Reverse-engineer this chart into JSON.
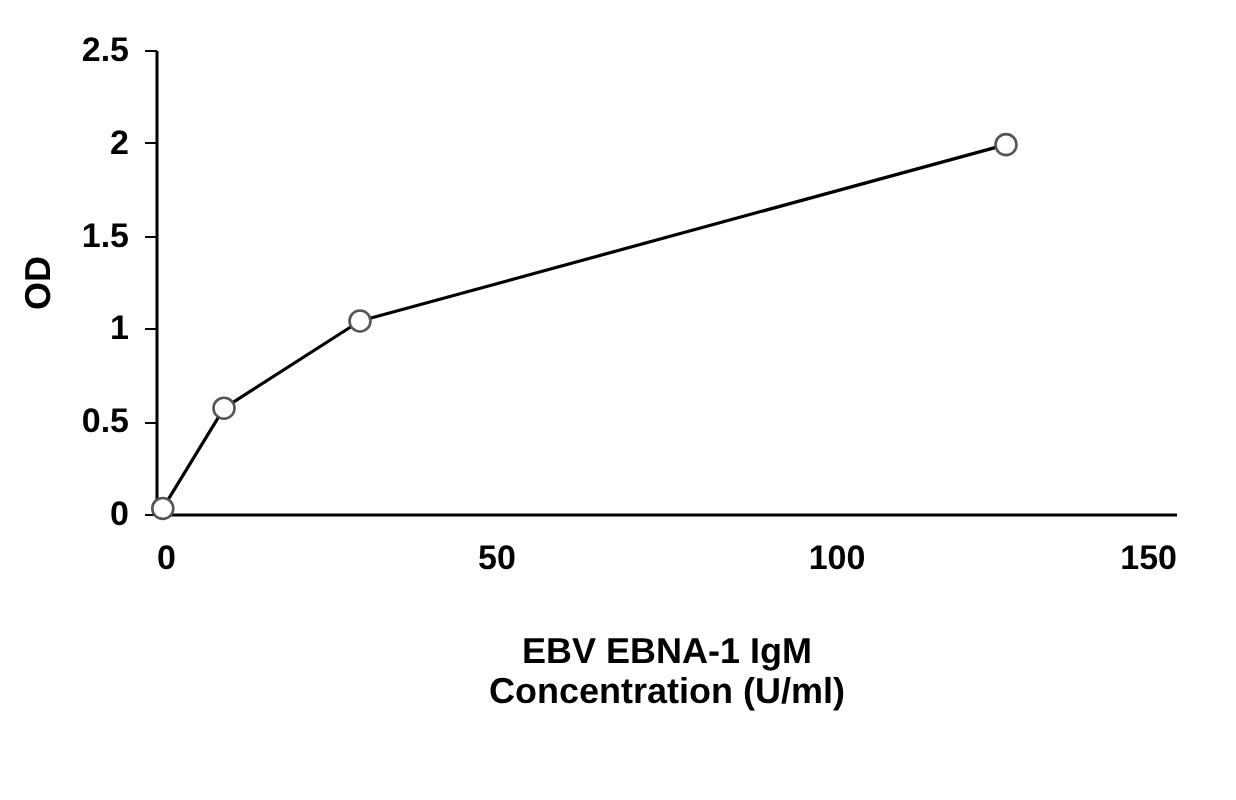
{
  "chart_data": {
    "type": "line",
    "xlabel": "EBV EBNA-1 IgM\nConcentration (U/ml)",
    "ylabel": "OD",
    "x": [
      1,
      10,
      30,
      125
    ],
    "series": [
      {
        "color": "#000000",
        "values": [
          0.03,
          0.57,
          1.04,
          1.99
        ]
      }
    ],
    "xlim": [
      0,
      150
    ],
    "xticks": [
      0,
      50,
      100,
      150
    ],
    "ylim": [
      0,
      2.5
    ],
    "yticks": [
      0,
      0.5,
      1,
      1.5,
      2,
      2.5
    ],
    "grid": false,
    "marker": "circle",
    "line_style": "solid"
  }
}
